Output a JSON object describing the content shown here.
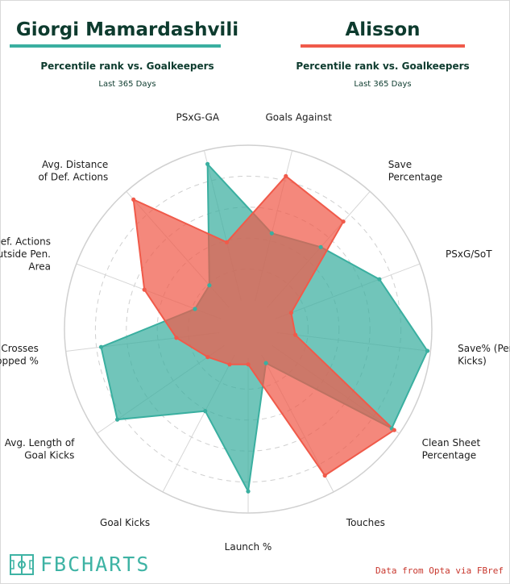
{
  "players": [
    {
      "name": "Giorgi Mamardashvili",
      "subtitle": "Percentile rank vs. Goalkeepers",
      "period": "Last 365 Days",
      "color": "#3aafa0"
    },
    {
      "name": "Alisson",
      "subtitle": "Percentile rank vs. Goalkeepers",
      "period": "Last 365 Days",
      "color": "#f05a4a"
    }
  ],
  "chart_data": {
    "type": "radar",
    "range": [
      0,
      100
    ],
    "grid_rings": 5,
    "categories": [
      "Goals Against",
      "Save Percentage",
      "PSxG/SoT",
      "Save% (Penalty Kicks)",
      "Clean Sheet Percentage",
      "Touches",
      "Launch %",
      "Goal Kicks",
      "Avg. Length of Goal Kicks",
      "Crosses Stopped %",
      "Def. Actions Outside Pen. Area",
      "Avg. Distance of Def. Actions",
      "PSxG-GA"
    ],
    "label_lines": [
      [
        "Goals Against"
      ],
      [
        "Save",
        "Percentage"
      ],
      [
        "PSxG/SoT"
      ],
      [
        "Save% (Penalty",
        "Kicks)"
      ],
      [
        "Clean Sheet",
        "Percentage"
      ],
      [
        "Touches"
      ],
      [
        "Launch %"
      ],
      [
        "Goal Kicks"
      ],
      [
        "Avg. Length of",
        "Goal Kicks"
      ],
      [
        "Crosses",
        "Stopped %"
      ],
      [
        "Def. Actions",
        "Outside Pen.",
        "Area"
      ],
      [
        "Avg. Distance",
        "of Def. Actions"
      ],
      [
        "PSxG-GA"
      ]
    ],
    "series": [
      {
        "name": "Giorgi Mamardashvili",
        "color": "#3aafa0",
        "values": [
          45,
          52,
          72,
          98,
          94,
          6,
          86,
          41,
          84,
          77,
          18,
          19,
          91
        ]
      },
      {
        "name": "Alisson",
        "color": "#f05a4a",
        "values": [
          83,
          74,
          11,
          12,
          96,
          88,
          4,
          7,
          13,
          28,
          53,
          93,
          39
        ]
      }
    ]
  },
  "footer": {
    "logo_text": "FBCHARTS",
    "source": "Data from Opta via FBref"
  }
}
